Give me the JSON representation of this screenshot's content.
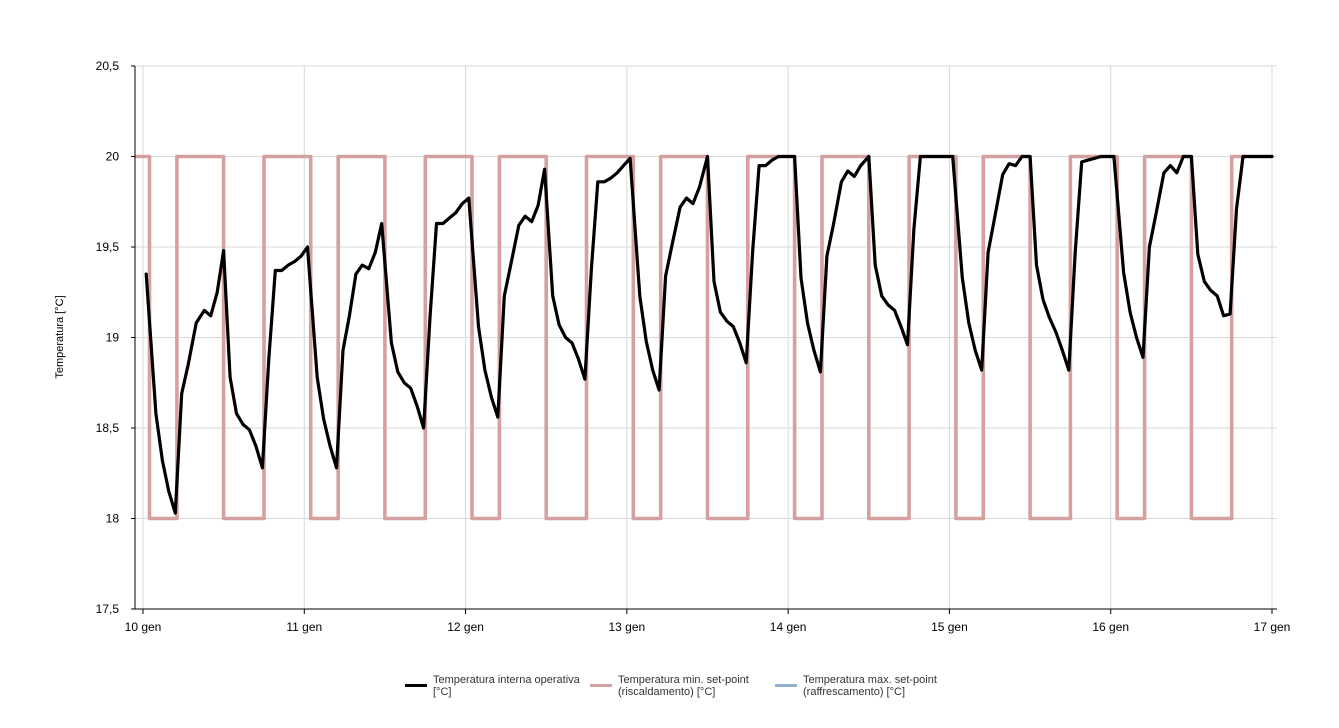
{
  "chart_data": {
    "type": "line",
    "title": "",
    "xlabel": "",
    "ylabel": "Temperatura [°C]",
    "ylim": [
      17.5,
      20.5
    ],
    "y_ticks": [
      "17,5",
      "18",
      "18,5",
      "19",
      "19,5",
      "20",
      "20,5"
    ],
    "y_tick_values": [
      17.5,
      18,
      18.5,
      19,
      19.5,
      20,
      20.5
    ],
    "x_ticks": [
      "10 gen",
      "11 gen",
      "12 gen",
      "13 gen",
      "14 gen",
      "15 gen",
      "16 gen",
      "17 gen"
    ],
    "x_tick_values": [
      10,
      11,
      12,
      13,
      14,
      15,
      16,
      17
    ],
    "xlim": [
      9.96,
      17.03
    ],
    "grid": true,
    "legend_position": "bottom",
    "series": [
      {
        "name": "Temperatura interna operativa [°C]",
        "color": "#000000",
        "points": [
          [
            10.02,
            19.35
          ],
          [
            10.08,
            18.58
          ],
          [
            10.12,
            18.32
          ],
          [
            10.16,
            18.15
          ],
          [
            10.2,
            18.03
          ],
          [
            10.24,
            18.69
          ],
          [
            10.28,
            18.85
          ],
          [
            10.33,
            19.08
          ],
          [
            10.38,
            19.15
          ],
          [
            10.42,
            19.12
          ],
          [
            10.46,
            19.25
          ],
          [
            10.5,
            19.48
          ],
          [
            10.54,
            18.78
          ],
          [
            10.58,
            18.58
          ],
          [
            10.62,
            18.52
          ],
          [
            10.66,
            18.49
          ],
          [
            10.7,
            18.4
          ],
          [
            10.74,
            18.28
          ],
          [
            10.78,
            18.88
          ],
          [
            10.82,
            19.37
          ],
          [
            10.86,
            19.37
          ],
          [
            10.9,
            19.4
          ],
          [
            10.94,
            19.42
          ],
          [
            10.98,
            19.45
          ],
          [
            11.02,
            19.5
          ],
          [
            11.08,
            18.78
          ],
          [
            11.12,
            18.55
          ],
          [
            11.16,
            18.4
          ],
          [
            11.2,
            18.28
          ],
          [
            11.24,
            18.93
          ],
          [
            11.28,
            19.12
          ],
          [
            11.32,
            19.35
          ],
          [
            11.36,
            19.4
          ],
          [
            11.4,
            19.38
          ],
          [
            11.44,
            19.47
          ],
          [
            11.48,
            19.63
          ],
          [
            11.54,
            18.97
          ],
          [
            11.58,
            18.81
          ],
          [
            11.62,
            18.75
          ],
          [
            11.66,
            18.72
          ],
          [
            11.7,
            18.62
          ],
          [
            11.74,
            18.5
          ],
          [
            11.78,
            19.12
          ],
          [
            11.82,
            19.63
          ],
          [
            11.86,
            19.63
          ],
          [
            11.9,
            19.66
          ],
          [
            11.94,
            19.69
          ],
          [
            11.98,
            19.74
          ],
          [
            12.02,
            19.77
          ],
          [
            12.08,
            19.06
          ],
          [
            12.12,
            18.82
          ],
          [
            12.16,
            18.67
          ],
          [
            12.2,
            18.56
          ],
          [
            12.24,
            19.23
          ],
          [
            12.28,
            19.4
          ],
          [
            12.33,
            19.62
          ],
          [
            12.37,
            19.67
          ],
          [
            12.41,
            19.64
          ],
          [
            12.45,
            19.73
          ],
          [
            12.49,
            19.93
          ],
          [
            12.54,
            19.23
          ],
          [
            12.58,
            19.07
          ],
          [
            12.62,
            19.0
          ],
          [
            12.66,
            18.97
          ],
          [
            12.7,
            18.88
          ],
          [
            12.74,
            18.77
          ],
          [
            12.78,
            19.38
          ],
          [
            12.82,
            19.86
          ],
          [
            12.86,
            19.86
          ],
          [
            12.9,
            19.88
          ],
          [
            12.94,
            19.91
          ],
          [
            12.98,
            19.95
          ],
          [
            13.02,
            19.99
          ],
          [
            13.08,
            19.23
          ],
          [
            13.12,
            18.98
          ],
          [
            13.16,
            18.82
          ],
          [
            13.2,
            18.71
          ],
          [
            13.24,
            19.34
          ],
          [
            13.28,
            19.51
          ],
          [
            13.33,
            19.72
          ],
          [
            13.37,
            19.77
          ],
          [
            13.41,
            19.74
          ],
          [
            13.45,
            19.83
          ],
          [
            13.5,
            20.0
          ],
          [
            13.54,
            19.31
          ],
          [
            13.58,
            19.14
          ],
          [
            13.62,
            19.09
          ],
          [
            13.66,
            19.06
          ],
          [
            13.7,
            18.97
          ],
          [
            13.74,
            18.86
          ],
          [
            13.78,
            19.48
          ],
          [
            13.82,
            19.95
          ],
          [
            13.86,
            19.95
          ],
          [
            13.9,
            19.98
          ],
          [
            13.94,
            20.0
          ],
          [
            14.0,
            20.0
          ],
          [
            14.04,
            20.0
          ],
          [
            14.08,
            19.33
          ],
          [
            14.12,
            19.08
          ],
          [
            14.16,
            18.93
          ],
          [
            14.2,
            18.81
          ],
          [
            14.24,
            19.45
          ],
          [
            14.28,
            19.62
          ],
          [
            14.33,
            19.86
          ],
          [
            14.37,
            19.92
          ],
          [
            14.41,
            19.89
          ],
          [
            14.45,
            19.95
          ],
          [
            14.5,
            20.0
          ],
          [
            14.54,
            19.4
          ],
          [
            14.58,
            19.23
          ],
          [
            14.62,
            19.18
          ],
          [
            14.66,
            19.15
          ],
          [
            14.7,
            19.06
          ],
          [
            14.74,
            18.96
          ],
          [
            14.78,
            19.6
          ],
          [
            14.82,
            20.0
          ],
          [
            14.88,
            20.0
          ],
          [
            14.95,
            20.0
          ],
          [
            15.02,
            20.0
          ],
          [
            15.08,
            19.33
          ],
          [
            15.12,
            19.08
          ],
          [
            15.16,
            18.93
          ],
          [
            15.2,
            18.82
          ],
          [
            15.24,
            19.47
          ],
          [
            15.28,
            19.66
          ],
          [
            15.33,
            19.9
          ],
          [
            15.37,
            19.96
          ],
          [
            15.41,
            19.95
          ],
          [
            15.45,
            20.0
          ],
          [
            15.5,
            20.0
          ],
          [
            15.54,
            19.4
          ],
          [
            15.58,
            19.21
          ],
          [
            15.62,
            19.11
          ],
          [
            15.66,
            19.03
          ],
          [
            15.7,
            18.93
          ],
          [
            15.74,
            18.82
          ],
          [
            15.78,
            19.47
          ],
          [
            15.82,
            19.97
          ],
          [
            15.86,
            19.98
          ],
          [
            15.9,
            19.99
          ],
          [
            15.94,
            20.0
          ],
          [
            16.02,
            20.0
          ],
          [
            16.08,
            19.36
          ],
          [
            16.12,
            19.14
          ],
          [
            16.16,
            19.0
          ],
          [
            16.2,
            18.89
          ],
          [
            16.24,
            19.5
          ],
          [
            16.28,
            19.68
          ],
          [
            16.33,
            19.91
          ],
          [
            16.37,
            19.95
          ],
          [
            16.41,
            19.91
          ],
          [
            16.45,
            20.0
          ],
          [
            16.5,
            20.0
          ],
          [
            16.54,
            19.46
          ],
          [
            16.58,
            19.31
          ],
          [
            16.62,
            19.26
          ],
          [
            16.66,
            19.23
          ],
          [
            16.7,
            19.12
          ],
          [
            16.74,
            19.13
          ],
          [
            16.78,
            19.71
          ],
          [
            16.82,
            20.0
          ],
          [
            16.9,
            20.0
          ],
          [
            17.0,
            20.0
          ]
        ]
      },
      {
        "name": "Temperatura min. set-point (riscaldamento) [°C]",
        "color": "#d4a0a0",
        "points": [
          [
            9.96,
            20
          ],
          [
            10.04,
            20
          ],
          [
            10.04,
            18
          ],
          [
            10.21,
            18
          ],
          [
            10.21,
            20
          ],
          [
            10.5,
            20
          ],
          [
            10.5,
            18
          ],
          [
            10.75,
            18
          ],
          [
            10.75,
            20
          ],
          [
            11.04,
            20
          ],
          [
            11.04,
            18
          ],
          [
            11.21,
            18
          ],
          [
            11.21,
            20
          ],
          [
            11.5,
            20
          ],
          [
            11.5,
            18
          ],
          [
            11.75,
            18
          ],
          [
            11.75,
            20
          ],
          [
            12.04,
            20
          ],
          [
            12.04,
            18
          ],
          [
            12.21,
            18
          ],
          [
            12.21,
            20
          ],
          [
            12.5,
            20
          ],
          [
            12.5,
            18
          ],
          [
            12.75,
            18
          ],
          [
            12.75,
            20
          ],
          [
            13.04,
            20
          ],
          [
            13.04,
            18
          ],
          [
            13.21,
            18
          ],
          [
            13.21,
            20
          ],
          [
            13.5,
            20
          ],
          [
            13.5,
            18
          ],
          [
            13.75,
            18
          ],
          [
            13.75,
            20
          ],
          [
            14.04,
            20
          ],
          [
            14.04,
            18
          ],
          [
            14.21,
            18
          ],
          [
            14.21,
            20
          ],
          [
            14.5,
            20
          ],
          [
            14.5,
            18
          ],
          [
            14.75,
            18
          ],
          [
            14.75,
            20
          ],
          [
            15.04,
            20
          ],
          [
            15.04,
            18
          ],
          [
            15.21,
            18
          ],
          [
            15.21,
            20
          ],
          [
            15.5,
            20
          ],
          [
            15.5,
            18
          ],
          [
            15.75,
            18
          ],
          [
            15.75,
            20
          ],
          [
            16.04,
            20
          ],
          [
            16.04,
            18
          ],
          [
            16.21,
            18
          ],
          [
            16.21,
            20
          ],
          [
            16.5,
            20
          ],
          [
            16.5,
            18
          ],
          [
            16.75,
            18
          ],
          [
            16.75,
            20
          ],
          [
            17.0,
            20
          ]
        ]
      },
      {
        "name": "Temperatura max. set-point (raffrescamento) [°C]",
        "color": "#8fb0d0",
        "points": []
      }
    ]
  },
  "legend": [
    {
      "label": "Temperatura interna operativa\n[°C]",
      "color": "#000000"
    },
    {
      "label": "Temperatura min. set-point\n(riscaldamento) [°C]",
      "color": "#d4a0a0"
    },
    {
      "label": "Temperatura max. set-point\n(raffrescamento) [°C]",
      "color": "#8fb0d0"
    }
  ]
}
